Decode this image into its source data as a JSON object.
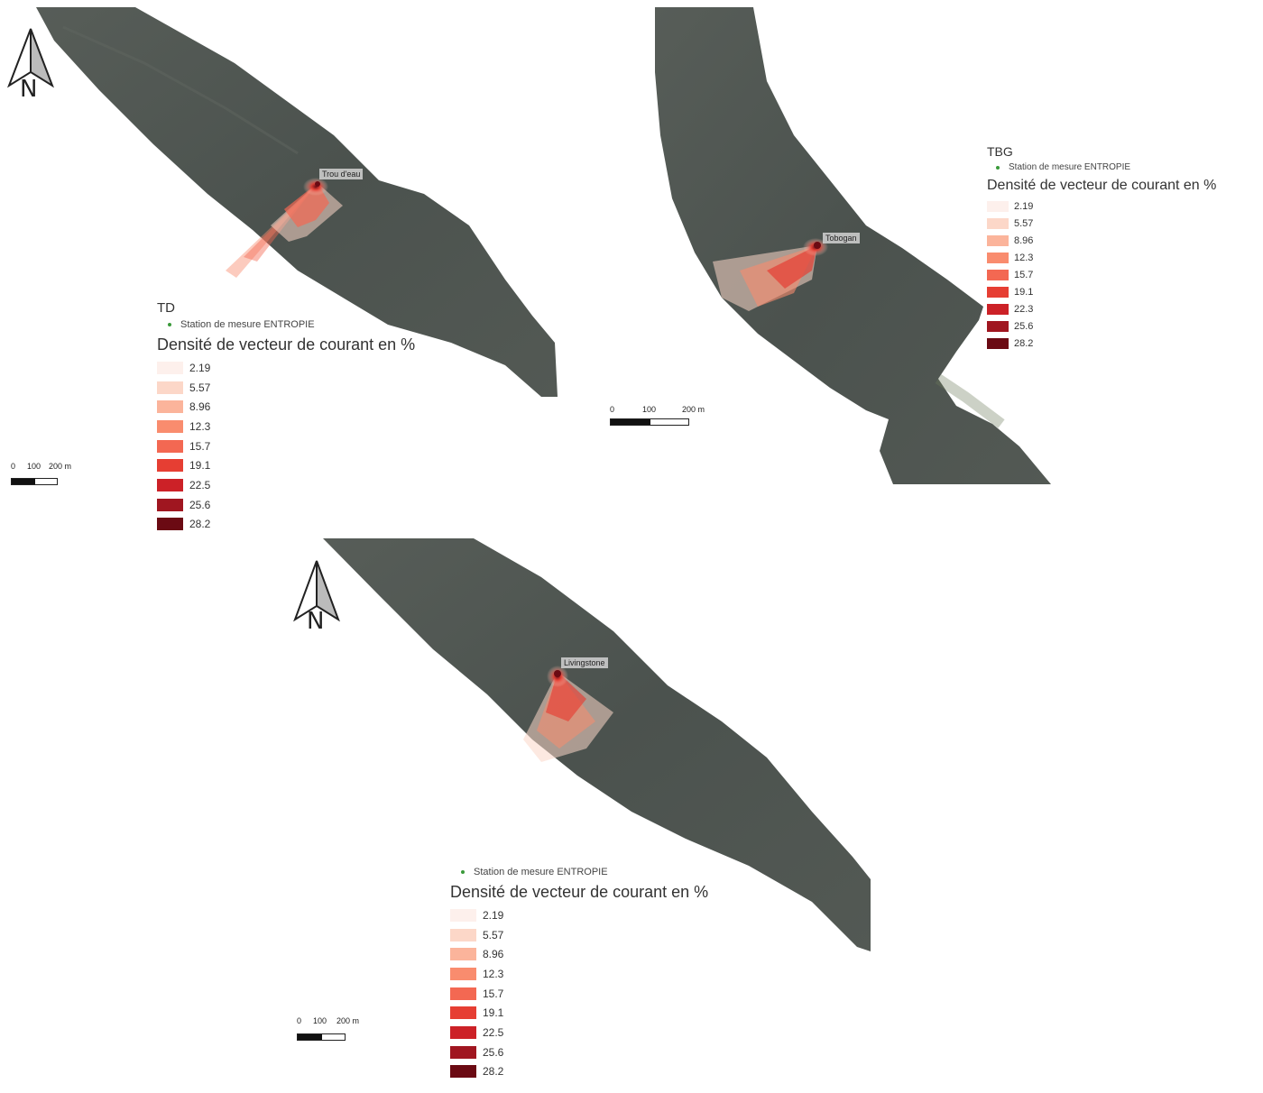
{
  "panels": [
    {
      "id": "td",
      "title": "TD",
      "station_label": "Trou d'eau",
      "legend_station": "Station de mesure ENTROPIE",
      "legend_heading": "Densité de vecteur de courant en %",
      "scale": {
        "t0": "0",
        "t1": "100",
        "t2": "200 m"
      }
    },
    {
      "id": "tbg",
      "title": "TBG",
      "station_label": "Tobogan",
      "legend_station": "Station de mesure ENTROPIE",
      "legend_heading": "Densité de vecteur de courant en  %",
      "scale": {
        "t0": "0",
        "t1": "100",
        "t2": "200 m"
      }
    },
    {
      "id": "liv",
      "title": "",
      "station_label": "Livingstone",
      "legend_station": "Station de mesure ENTROPIE",
      "legend_heading": "Densité de vecteur de courant en %",
      "scale": {
        "t0": "0",
        "t1": "100",
        "t2": "200 m"
      }
    }
  ],
  "north_letter": "N",
  "legend_classes": [
    {
      "value": "2.19",
      "color": "#fdf0ec"
    },
    {
      "value": "5.57",
      "color": "#fcd7c8"
    },
    {
      "value": "8.96",
      "color": "#fbb49b"
    },
    {
      "value": "12.3",
      "color": "#f98c6e"
    },
    {
      "value": "15.7",
      "color": "#f36852"
    },
    {
      "value": "19.1",
      "color": "#e63e33"
    },
    {
      "value": "22.5",
      "color": "#cc2127"
    },
    {
      "value": "25.6",
      "color": "#a01620"
    },
    {
      "value": "28.2",
      "color": "#6b0a13"
    }
  ],
  "legend_classes_tbg": [
    "2.19",
    "5.57",
    "8.96",
    "12.3",
    "15.7",
    "19.1",
    "22.3",
    "25.6",
    "28.2"
  ],
  "colors": {
    "terrain": "#4d5450",
    "station_marker": "#3a9a3a"
  }
}
